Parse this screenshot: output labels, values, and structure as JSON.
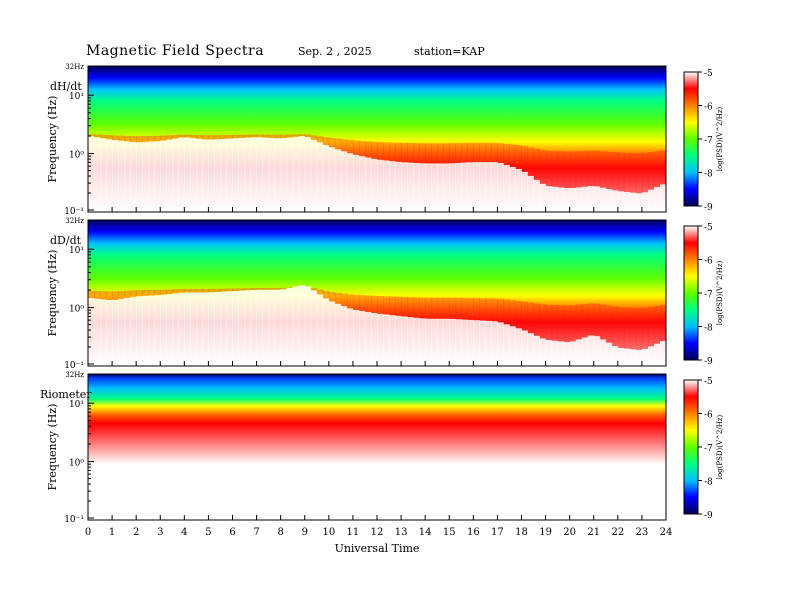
{
  "header": {
    "title": "Magnetic  Field  Spectra",
    "date": "Sep. 2  , 2025",
    "station": "station=KAP"
  },
  "colors": {
    "scale": [
      "#000055",
      "#0000ff",
      "#00c0ff",
      "#00ff80",
      "#60ff00",
      "#ffff00",
      "#ff8000",
      "#ff0000",
      "#ffffff"
    ]
  },
  "chart_data": [
    {
      "type": "heatmap",
      "panel_label": "dH/dt",
      "ylabel": "Frequency  (Hz)",
      "top_label": "32Hz",
      "yticks": [
        "10⁻¹",
        "10⁰",
        "10¹"
      ],
      "xlim": [
        0,
        24
      ],
      "colorbar": {
        "label": "log(PSD)(V^2/Hz)",
        "ticks": [
          "-5",
          "-6",
          "-7",
          "-8",
          "-9"
        ]
      },
      "hours": [
        0,
        1,
        2,
        3,
        4,
        5,
        6,
        7,
        8,
        9,
        10,
        11,
        12,
        13,
        14,
        15,
        16,
        17,
        18,
        19,
        20,
        21,
        22,
        23,
        24
      ],
      "power_level": [
        0.42,
        0.45,
        0.47,
        0.46,
        0.43,
        0.45,
        0.44,
        0.43,
        0.44,
        0.42,
        0.5,
        0.56,
        0.6,
        0.62,
        0.63,
        0.63,
        0.62,
        0.62,
        0.68,
        0.8,
        0.82,
        0.8,
        0.84,
        0.86,
        0.78
      ]
    },
    {
      "type": "heatmap",
      "panel_label": "dD/dt",
      "ylabel": "Frequency  (Hz)",
      "top_label": "32Hz",
      "yticks": [
        "10⁻¹",
        "10⁰",
        "10¹"
      ],
      "xlim": [
        0,
        24
      ],
      "colorbar": {
        "label": "log(PSD)(V^2/Hz)",
        "ticks": [
          "-5",
          "-6",
          "-7",
          "-8",
          "-9"
        ]
      },
      "hours": [
        0,
        1,
        2,
        3,
        4,
        5,
        6,
        7,
        8,
        9,
        10,
        11,
        12,
        13,
        14,
        15,
        16,
        17,
        18,
        19,
        20,
        21,
        22,
        23,
        24
      ],
      "power_level": [
        0.48,
        0.5,
        0.47,
        0.46,
        0.44,
        0.44,
        0.43,
        0.42,
        0.42,
        0.38,
        0.5,
        0.57,
        0.6,
        0.62,
        0.64,
        0.64,
        0.65,
        0.66,
        0.72,
        0.8,
        0.82,
        0.76,
        0.86,
        0.88,
        0.8
      ]
    },
    {
      "type": "heatmap",
      "panel_label": "Riometer",
      "ylabel": "Frequency  (Hz)",
      "top_label": "32Hz",
      "yticks": [
        "10⁻¹",
        "10⁰",
        "10¹"
      ],
      "xlim": [
        0,
        24
      ],
      "xlabel": "Universal Time",
      "xticks": [
        "0",
        "1",
        "2",
        "3",
        "4",
        "5",
        "6",
        "7",
        "8",
        "9",
        "10",
        "11",
        "12",
        "13",
        "14",
        "15",
        "16",
        "17",
        "18",
        "19",
        "20",
        "21",
        "22",
        "23",
        "24"
      ],
      "colorbar": {
        "label": "log(PSD)(V^2/Hz)",
        "ticks": [
          "-5",
          "-6",
          "-7",
          "-8",
          "-9"
        ]
      },
      "hours": [
        0,
        1,
        2,
        3,
        4,
        5,
        6,
        7,
        8,
        9,
        10,
        11,
        12,
        13,
        14,
        15,
        16,
        17,
        18,
        19,
        20,
        21,
        22,
        23,
        24
      ],
      "power_level": [
        0.74,
        0.74,
        0.76,
        0.74,
        0.74,
        0.74,
        0.74,
        0.74,
        0.74,
        0.74,
        0.74,
        0.74,
        0.75,
        0.76,
        0.76,
        0.77,
        0.78,
        0.79,
        0.82,
        0.86,
        0.87,
        0.86,
        0.9,
        0.92,
        0.88
      ]
    }
  ]
}
